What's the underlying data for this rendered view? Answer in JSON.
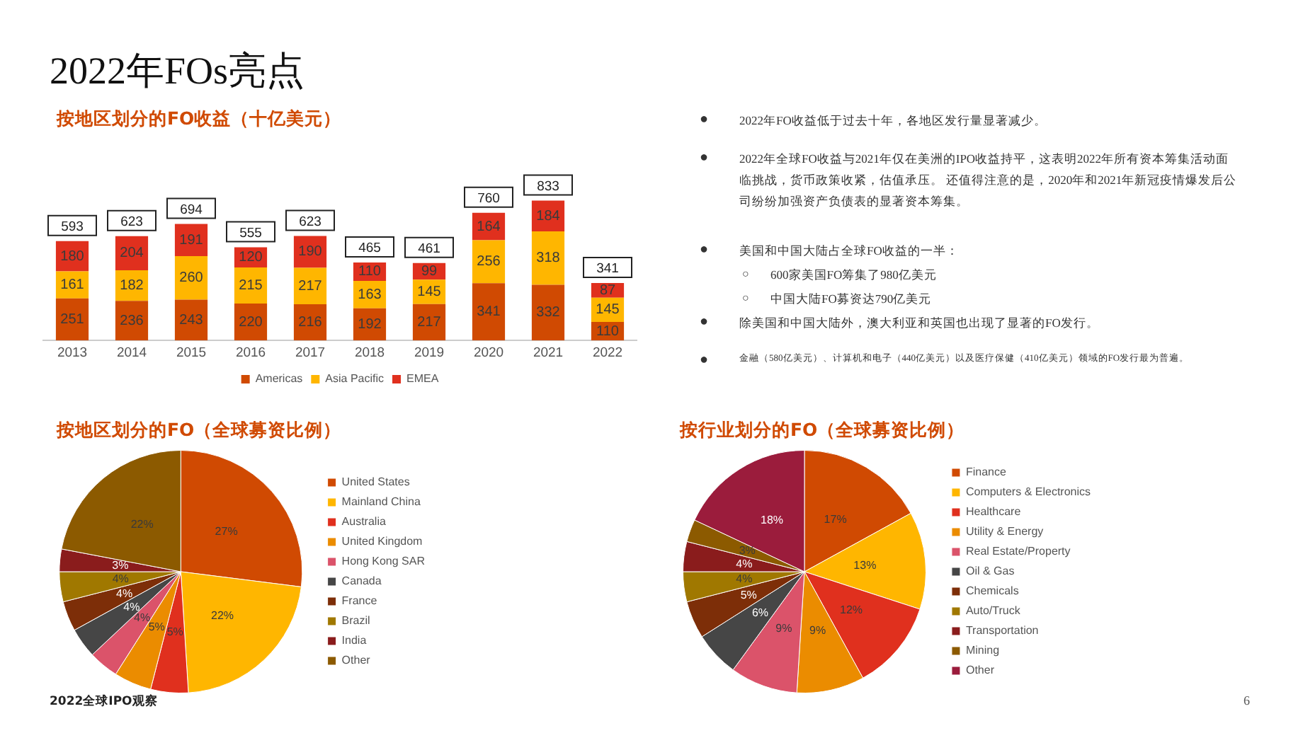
{
  "chart_data": [
    {
      "type": "bar",
      "title": "按地区划分的FO收益（十亿美元）",
      "categories": [
        "2013",
        "2014",
        "2015",
        "2016",
        "2017",
        "2018",
        "2019",
        "2020",
        "2021",
        "2022"
      ],
      "stacked": true,
      "data_labels": true,
      "legend": "bottom",
      "grid": false,
      "totals": [
        "593",
        "623",
        "694",
        "555",
        "623",
        "465",
        "461",
        "760",
        "833",
        "341"
      ],
      "series": [
        {
          "name": "Americas",
          "color": "#d04a02",
          "values": [
            251,
            236,
            243,
            220,
            216,
            192,
            217,
            341,
            332,
            110
          ]
        },
        {
          "name": "Asia Pacific",
          "color": "#ffb600",
          "values": [
            161,
            182,
            260,
            215,
            217,
            163,
            145,
            256,
            318,
            145
          ]
        },
        {
          "name": "EMEA",
          "color": "#e0301e",
          "values": [
            180,
            204,
            191,
            120,
            190,
            110,
            99,
            164,
            184,
            87
          ]
        }
      ]
    },
    {
      "type": "pie",
      "title": "按地区划分的FO（全球募资比例）",
      "legend": "right",
      "categories": [
        "United States",
        "Mainland China",
        "Australia",
        "United Kingdom",
        "Hong Kong SAR",
        "Canada",
        "France",
        "Brazil",
        "India",
        "Other"
      ],
      "values": [
        27,
        22,
        5,
        5,
        4,
        4,
        4,
        4,
        3,
        22
      ],
      "value_labels": [
        "27%",
        "22%",
        "5%",
        "5%",
        "4%",
        "4%",
        "4%",
        "4%",
        "3%",
        "22%"
      ],
      "colors": [
        "#d04a02",
        "#ffb600",
        "#e0301e",
        "#eb8c00",
        "#db536a",
        "#464646",
        "#7d2e08",
        "#a07800",
        "#8a1c1c",
        "#8c5a00"
      ]
    },
    {
      "type": "pie",
      "title": "按行业划分的FO（全球募资比例）",
      "legend": "right",
      "categories": [
        "Finance",
        "Computers & Electronics",
        "Healthcare",
        "Utility & Energy",
        "Real Estate/Property",
        "Oil & Gas",
        "Chemicals",
        "Auto/Truck",
        "Transportation",
        "Mining",
        "Other"
      ],
      "values": [
        17,
        13,
        12,
        9,
        9,
        6,
        5,
        4,
        4,
        3,
        18
      ],
      "value_labels": [
        "17%",
        "13%",
        "12%",
        "9%",
        "9%",
        "6%",
        "5%",
        "4%",
        "4%",
        "3%",
        "18%"
      ],
      "colors": [
        "#d04a02",
        "#ffb600",
        "#e0301e",
        "#eb8c00",
        "#db536a",
        "#464646",
        "#7d2e08",
        "#a07800",
        "#8a1c1c",
        "#8c5a00",
        "#9b1c3c"
      ]
    },
    {
      "type": "other",
      "title": "2022年FOs亮点",
      "annotations": [
        "●",
        "2022年FO收益低于过去十年，各地区发行量显著减少。",
        "●",
        "2022年全球FO收益与2021年仅在美洲的IPO收益持平，这表明2022年所有资本筹集活动面临挑战，货币政策收紧，估值承压。 还值得注意的是，2020年和2021年新冠疫情爆发后公司纷纷加强资产负债表的显著资本筹集。",
        "●",
        "美国和中国大陆占全球FO收益的一半：",
        "○",
        "600家美国FO筹集了980亿美元",
        "○",
        "中国大陆FO募资达790亿美元",
        "●",
        "除美国和中国大陆外，澳大利亚和英国也出现了显著的FO发行。",
        "●",
        "金融（580亿美元）、计算机和电子（440亿美元）以及医疗保健（410亿美元）领域的FO发行最为普遍。",
        "2022全球IPO观察",
        "6"
      ]
    }
  ]
}
